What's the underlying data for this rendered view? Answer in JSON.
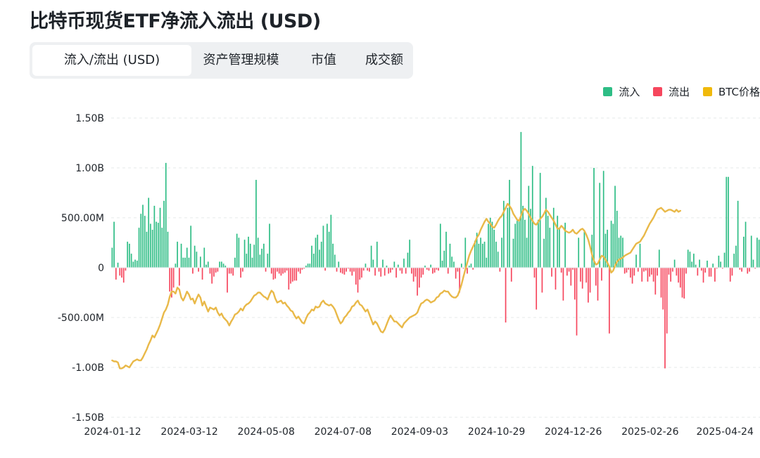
{
  "page": {
    "title": "比特币现货ETF净流入流出 (USD)"
  },
  "tabs": [
    {
      "label": "流入/流出 (USD)",
      "active": true
    },
    {
      "label": "资产管理规模",
      "active": false
    },
    {
      "label": "市值",
      "active": false
    },
    {
      "label": "成交额",
      "active": false
    }
  ],
  "legend": [
    {
      "label": "流入",
      "color": "#2ebd85"
    },
    {
      "label": "流出",
      "color": "#f6465d"
    },
    {
      "label": "BTC价格",
      "color": "#f0b90b"
    }
  ],
  "chart_data": {
    "type": "bar",
    "title": "比特币现货ETF净流入流出 (USD)",
    "y_ticks": [
      "1.50B",
      "1.00B",
      "500.00M",
      "0",
      "-500.00M",
      "-1.00B",
      "-1.50B"
    ],
    "y_tick_values": [
      1500,
      1000,
      500,
      0,
      -500,
      -1000,
      -1500
    ],
    "ylim": [
      -1500,
      1500
    ],
    "x_ticks": [
      "2024-01-12",
      "2024-03-12",
      "2024-05-08",
      "2024-07-08",
      "2024-09-03",
      "2024-10-29",
      "2024-12-26",
      "2025-02-26",
      "2025-04-24"
    ],
    "x_tick_index": [
      0,
      40,
      80,
      120,
      160,
      200,
      240,
      280,
      319
    ],
    "grid": "horizontal dashed",
    "legend_position": "top-right",
    "series": [
      {
        "name": "流入/流出",
        "unit": "M USD",
        "values": [
          200,
          460,
          -120,
          50,
          -80,
          -100,
          -150,
          -30,
          260,
          240,
          140,
          60,
          80,
          70,
          400,
          540,
          630,
          520,
          360,
          700,
          440,
          380,
          620,
          460,
          450,
          600,
          400,
          670,
          1050,
          360,
          -240,
          -300,
          -200,
          40,
          260,
          -180,
          240,
          100,
          100,
          200,
          100,
          420,
          -60,
          220,
          160,
          -40,
          110,
          -120,
          200,
          30,
          60,
          -60,
          -160,
          -90,
          -50,
          -40,
          60,
          60,
          40,
          20,
          -250,
          -60,
          -60,
          -80,
          100,
          340,
          300,
          -100,
          -40,
          280,
          140,
          310,
          240,
          100,
          230,
          880,
          300,
          130,
          190,
          240,
          -40,
          140,
          440,
          -60,
          -120,
          -110,
          -40,
          -60,
          -80,
          -60,
          -50,
          -30,
          -220,
          -160,
          -140,
          -130,
          -130,
          -40,
          -60,
          -20,
          -10,
          20,
          40,
          40,
          220,
          140,
          300,
          330,
          180,
          260,
          420,
          -30,
          440,
          360,
          530,
          240,
          130,
          -40,
          60,
          -50,
          -60,
          -70,
          -40,
          -10,
          -40,
          -80,
          -40,
          -170,
          -250,
          -120,
          -100,
          -30,
          40,
          -30,
          -40,
          220,
          80,
          -80,
          260,
          -40,
          -90,
          80,
          -80,
          20,
          -60,
          -50,
          -20,
          60,
          -100,
          30,
          -30,
          -60,
          90,
          -60,
          150,
          280,
          -60,
          -140,
          -90,
          -280,
          -200,
          -100,
          -70,
          20,
          -20,
          -30,
          30,
          -60,
          -50,
          -20,
          -30,
          440,
          70,
          170,
          360,
          -60,
          240,
          110,
          60,
          -110,
          -40,
          -250,
          40,
          -10,
          300,
          -60,
          20,
          40,
          -20,
          270,
          350,
          240,
          300,
          240,
          260,
          100,
          440,
          500,
          460,
          380,
          260,
          160,
          -40,
          300,
          670,
          -550,
          600,
          880,
          -140,
          290,
          440,
          470,
          470,
          1360,
          620,
          480,
          300,
          820,
          590,
          1020,
          -100,
          -420,
          480,
          950,
          -250,
          290,
          700,
          520,
          400,
          -90,
          600,
          -220,
          520,
          400,
          -50,
          -330,
          450,
          -80,
          -40,
          -180,
          -20,
          -320,
          -680,
          300,
          -140,
          -210,
          360,
          -150,
          -350,
          -250,
          330,
          1000,
          -180,
          -330,
          850,
          -130,
          970,
          340,
          380,
          -660,
          470,
          440,
          820,
          570,
          300,
          320,
          300,
          -60,
          -50,
          -20,
          -100,
          -160,
          -80,
          130,
          -40,
          240,
          -140,
          -40,
          -30,
          -140,
          -90,
          -70,
          -140,
          -270,
          -80,
          180,
          -300,
          -420,
          -1010,
          -660,
          -70,
          -140,
          -40,
          80,
          -80,
          -150,
          -200,
          -300,
          -310,
          -60,
          180,
          160,
          60,
          140,
          30,
          -80,
          80,
          -30,
          -150,
          -50,
          70,
          -90,
          -90,
          40,
          -140,
          -10,
          120,
          60,
          -10,
          150,
          910,
          910,
          -140,
          -80,
          140,
          220,
          670,
          -20,
          -40,
          310,
          460,
          -60,
          -40,
          320,
          80,
          -10,
          300,
          280
        ]
      },
      {
        "name": "BTC价格",
        "unit": "axis-equivalent M",
        "values": [
          -930,
          -940,
          -940,
          -950,
          -1010,
          -1010,
          -1000,
          -980,
          -990,
          -1000,
          -970,
          -940,
          -930,
          -920,
          -930,
          -930,
          -900,
          -860,
          -820,
          -770,
          -730,
          -680,
          -700,
          -660,
          -620,
          -570,
          -510,
          -450,
          -420,
          -370,
          -290,
          -240,
          -240,
          -260,
          -200,
          -220,
          -300,
          -330,
          -290,
          -240,
          -270,
          -320,
          -310,
          -360,
          -310,
          -270,
          -300,
          -380,
          -340,
          -390,
          -440,
          -400,
          -410,
          -420,
          -400,
          -450,
          -480,
          -460,
          -500,
          -520,
          -540,
          -580,
          -540,
          -510,
          -470,
          -460,
          -440,
          -410,
          -430,
          -390,
          -370,
          -360,
          -340,
          -310,
          -280,
          -270,
          -250,
          -250,
          -270,
          -290,
          -300,
          -320,
          -270,
          -230,
          -250,
          -310,
          -350,
          -340,
          -330,
          -360,
          -350,
          -380,
          -400,
          -430,
          -440,
          -480,
          -510,
          -490,
          -520,
          -550,
          -560,
          -510,
          -470,
          -450,
          -420,
          -430,
          -390,
          -400,
          -390,
          -350,
          -330,
          -360,
          -370,
          -380,
          -370,
          -390,
          -420,
          -470,
          -520,
          -560,
          -540,
          -500,
          -480,
          -450,
          -430,
          -390,
          -380,
          -350,
          -330,
          -370,
          -380,
          -410,
          -440,
          -420,
          -470,
          -520,
          -570,
          -540,
          -560,
          -600,
          -640,
          -650,
          -620,
          -570,
          -520,
          -480,
          -510,
          -540,
          -540,
          -560,
          -580,
          -600,
          -560,
          -540,
          -520,
          -500,
          -490,
          -480,
          -470,
          -450,
          -400,
          -360,
          -350,
          -330,
          -320,
          -330,
          -350,
          -340,
          -330,
          -300,
          -290,
          -260,
          -250,
          -230,
          -240,
          -240,
          -270,
          -290,
          -300,
          -300,
          -280,
          -230,
          -170,
          -90,
          -20,
          50,
          120,
          170,
          210,
          250,
          300,
          330,
          380,
          420,
          460,
          490,
          460,
          440,
          410,
          400,
          430,
          470,
          500,
          520,
          560,
          600,
          640,
          620,
          590,
          540,
          510,
          480,
          470,
          520,
          570,
          590,
          570,
          540,
          500,
          470,
          440,
          430,
          460,
          490,
          510,
          540,
          580,
          560,
          530,
          500,
          470,
          430,
          390,
          390,
          420,
          400,
          370,
          360,
          350,
          360,
          380,
          350,
          340,
          360,
          380,
          390,
          370,
          330,
          280,
          210,
          130,
          70,
          30,
          40,
          80,
          120,
          110,
          80,
          50,
          10,
          -50,
          -30,
          20,
          60,
          80,
          90,
          100,
          120,
          130,
          140,
          150,
          180,
          210,
          240,
          250,
          260,
          290,
          320,
          360,
          400,
          440,
          470,
          500,
          540,
          580,
          590,
          600,
          580,
          560,
          570,
          580,
          580,
          570,
          560,
          580,
          560,
          570
        ]
      }
    ]
  }
}
